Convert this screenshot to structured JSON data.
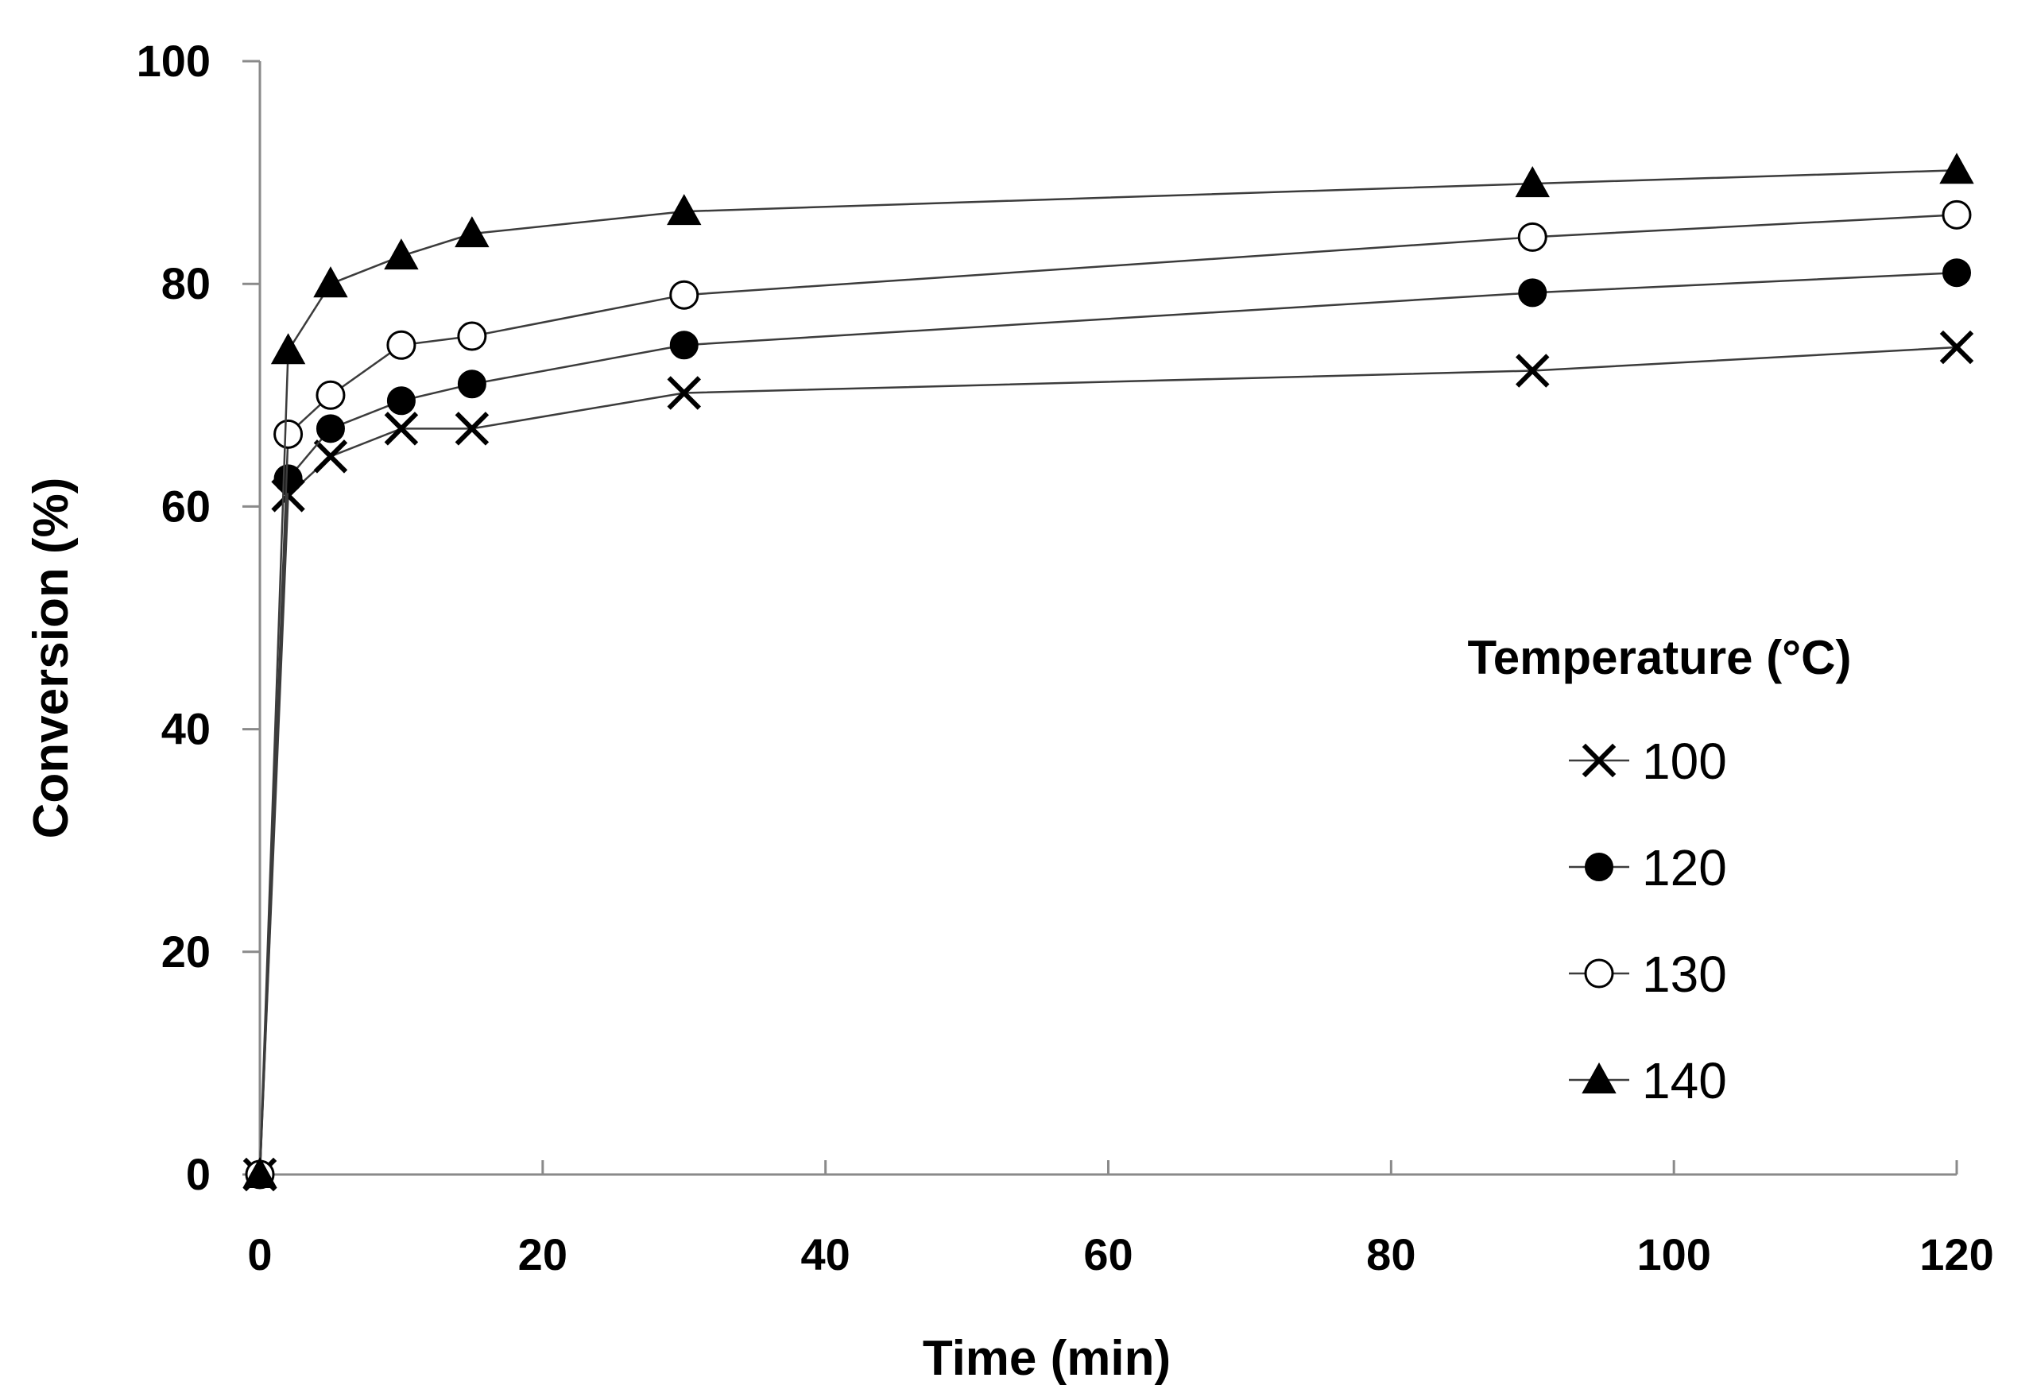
{
  "chart_data": {
    "type": "line",
    "title": "",
    "xlabel": "Time (min)",
    "ylabel": "Conversion (%)",
    "xlim": [
      0,
      120
    ],
    "ylim": [
      0,
      100
    ],
    "xticks": [
      0,
      20,
      40,
      60,
      80,
      100,
      120
    ],
    "yticks": [
      0,
      20,
      40,
      60,
      80,
      100
    ],
    "grid": false,
    "legend": {
      "title": "Temperature (°C)",
      "position": "right"
    },
    "x": [
      0,
      2,
      5,
      10,
      15,
      30,
      90,
      120
    ],
    "series": [
      {
        "name": "100",
        "marker": "x",
        "values": [
          0,
          61,
          64.5,
          67,
          67,
          70.2,
          72.2,
          74.3
        ]
      },
      {
        "name": "120",
        "marker": "filled-circle",
        "values": [
          0,
          62.5,
          67,
          69.5,
          71,
          74.5,
          79.2,
          81
        ]
      },
      {
        "name": "130",
        "marker": "open-circle",
        "values": [
          0,
          66.5,
          70,
          74.5,
          75.3,
          79,
          84.2,
          86.2
        ]
      },
      {
        "name": "140",
        "marker": "filled-triangle",
        "values": [
          0,
          74,
          80,
          82.5,
          84.5,
          86.5,
          89,
          90.2
        ]
      }
    ]
  },
  "colors": {
    "axis": "#8a8a8a",
    "line": "#3c3c3c",
    "marker": "#000000",
    "background": "#ffffff"
  }
}
